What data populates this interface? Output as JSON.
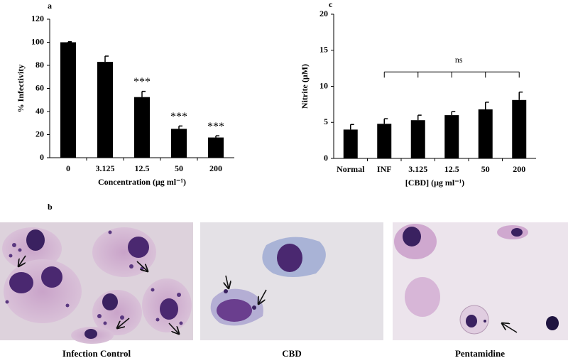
{
  "chart_data": [
    {
      "type": "bar",
      "panel": "a",
      "ylabel": "% Infectivity",
      "xlabel": "Concentration (μg ml⁻¹)",
      "categories": [
        "0",
        "3.125",
        "12.5",
        "50",
        "200"
      ],
      "values": [
        100,
        83,
        52.5,
        25,
        17.5
      ],
      "errors": [
        0.5,
        5,
        5,
        2.5,
        1.5
      ],
      "significance": [
        null,
        null,
        "***",
        "***",
        "***"
      ],
      "color": "#000000",
      "ylim": [
        0,
        120
      ],
      "yticks": [
        0,
        20,
        40,
        60,
        80,
        100,
        120
      ]
    },
    {
      "type": "bar",
      "panel": "c",
      "ylabel": "Nitrite (μM)",
      "xlabel": "[CBD] (μg ml⁻¹)",
      "categories": [
        "Normal",
        "INF",
        "3.125",
        "12.5",
        "50",
        "200"
      ],
      "values": [
        4.0,
        4.8,
        5.3,
        6.0,
        6.8,
        8.1
      ],
      "errors": [
        0.7,
        0.7,
        0.7,
        0.5,
        1.0,
        1.1
      ],
      "bracket_label": "ns",
      "color": "#000000",
      "ylim": [
        0,
        20
      ],
      "yticks": [
        0,
        5,
        10,
        15,
        20
      ]
    }
  ],
  "images": {
    "panel": "b",
    "captions": [
      "Infection Control",
      "CBD",
      "Pentamidine"
    ]
  }
}
